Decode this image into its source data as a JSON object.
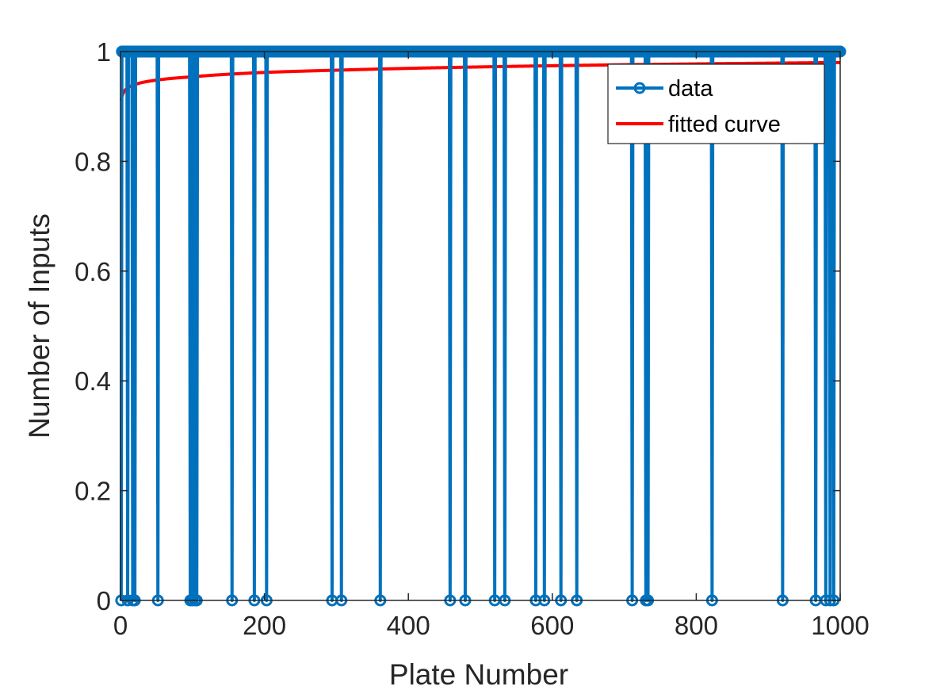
{
  "chart_data": {
    "type": "line",
    "title": "",
    "xlabel": "Plate Number",
    "ylabel": "Number of Inputs",
    "xlim": [
      0,
      1000
    ],
    "ylim": [
      0,
      1
    ],
    "xticks": [
      "0",
      "200",
      "400",
      "600",
      "800",
      "1000"
    ],
    "yticks": [
      "0",
      "0.2",
      "0.4",
      "0.6",
      "0.8",
      "1"
    ],
    "grid": false,
    "legend_position": "top-right",
    "series": [
      {
        "name": "data",
        "color": "#0072BD",
        "marker": "circle",
        "default_y": 1,
        "x_start": 1,
        "x_end": 1000,
        "zero_at_x": [
          1,
          10,
          17,
          20,
          52,
          97,
          100,
          104,
          106,
          155,
          186,
          203,
          294,
          307,
          361,
          458,
          479,
          520,
          534,
          577,
          589,
          612,
          634,
          711,
          730,
          733,
          822,
          920,
          966,
          980,
          986,
          991
        ]
      },
      {
        "name": "fitted curve",
        "color": "#FF0000",
        "x": [
          1,
          2,
          5,
          10,
          20,
          50,
          100,
          200,
          300,
          500,
          700,
          1000
        ],
        "y": [
          0.911,
          0.918,
          0.927,
          0.934,
          0.94,
          0.948,
          0.954,
          0.962,
          0.966,
          0.972,
          0.976,
          0.98
        ]
      }
    ]
  }
}
